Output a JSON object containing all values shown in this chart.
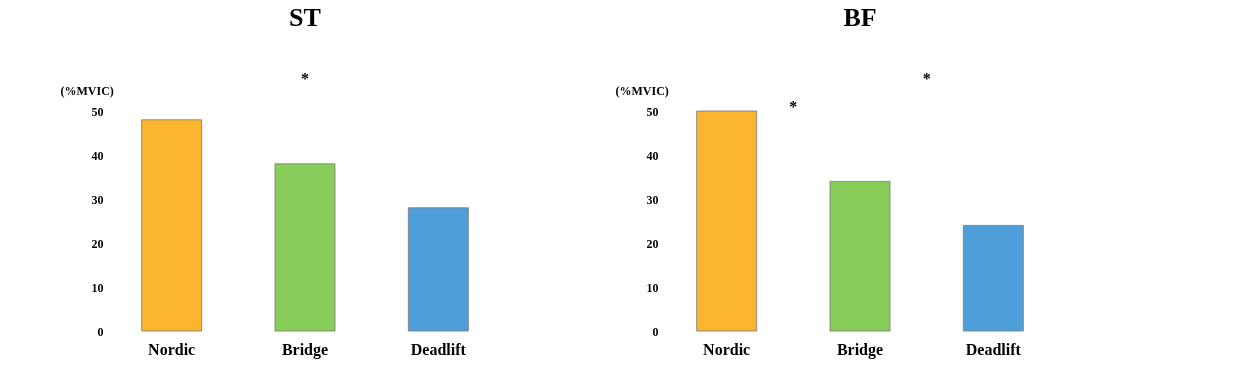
{
  "chart_data": [
    {
      "type": "bar",
      "title": "ST",
      "ylabel": "(%MVIC)",
      "categories": [
        "Nordic",
        "Bridge",
        "Deadlift"
      ],
      "values": [
        48,
        38,
        28
      ],
      "colors": [
        "#fbb52f",
        "#88cc5a",
        "#4e9fd9"
      ],
      "ylim": [
        0,
        50
      ],
      "yticks": [
        0,
        10,
        20,
        30,
        40,
        50
      ],
      "grid": false,
      "annotations": [
        "*"
      ]
    },
    {
      "type": "bar",
      "title": "BF",
      "ylabel": "(%MVIC)",
      "categories": [
        "Nordic",
        "Bridge",
        "Deadlift"
      ],
      "values": [
        50,
        34,
        24
      ],
      "colors": [
        "#fbb52f",
        "#88cc5a",
        "#4e9fd9"
      ],
      "ylim": [
        0,
        50
      ],
      "yticks": [
        0,
        10,
        20,
        30,
        40,
        50
      ],
      "grid": false,
      "annotations": [
        "*",
        "*"
      ]
    }
  ]
}
